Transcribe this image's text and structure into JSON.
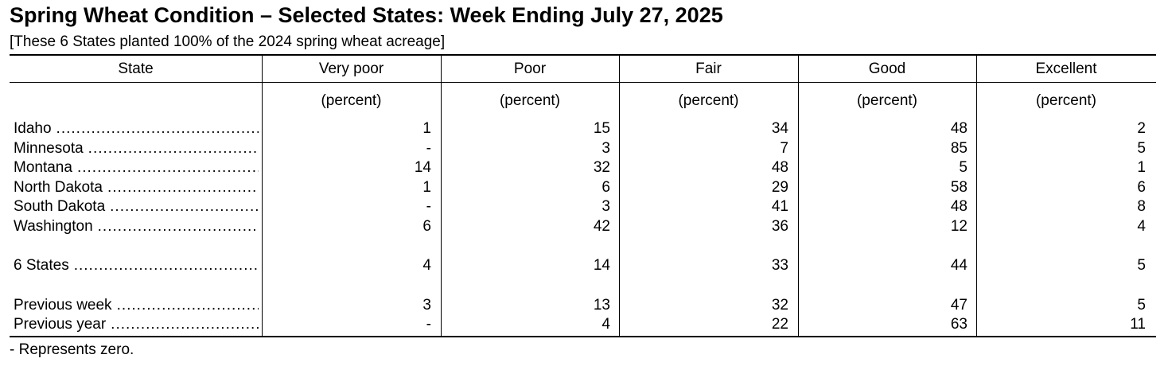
{
  "title": "Spring Wheat Condition – Selected States: Week Ending July 27, 2025",
  "subtitle": "[These 6 States planted 100% of the 2024 spring wheat acreage]",
  "columns": [
    "State",
    "Very poor",
    "Poor",
    "Fair",
    "Good",
    "Excellent"
  ],
  "unit_label": "(percent)",
  "rows": [
    {
      "label": "Idaho",
      "values": [
        "1",
        "15",
        "34",
        "48",
        "2"
      ]
    },
    {
      "label": "Minnesota",
      "values": [
        "-",
        "3",
        "7",
        "85",
        "5"
      ]
    },
    {
      "label": "Montana",
      "values": [
        "14",
        "32",
        "48",
        "5",
        "1"
      ]
    },
    {
      "label": "North Dakota",
      "values": [
        "1",
        "6",
        "29",
        "58",
        "6"
      ]
    },
    {
      "label": "South Dakota",
      "values": [
        "-",
        "3",
        "41",
        "48",
        "8"
      ]
    },
    {
      "label": "Washington",
      "values": [
        "6",
        "42",
        "36",
        "12",
        "4"
      ]
    },
    {
      "label": "6 States",
      "values": [
        "4",
        "14",
        "33",
        "44",
        "5"
      ]
    },
    {
      "label": "Previous week",
      "values": [
        "3",
        "13",
        "32",
        "47",
        "5"
      ]
    },
    {
      "label": "Previous year",
      "values": [
        "-",
        "4",
        "22",
        "63",
        "11"
      ]
    }
  ],
  "footnote": "- Represents zero."
}
